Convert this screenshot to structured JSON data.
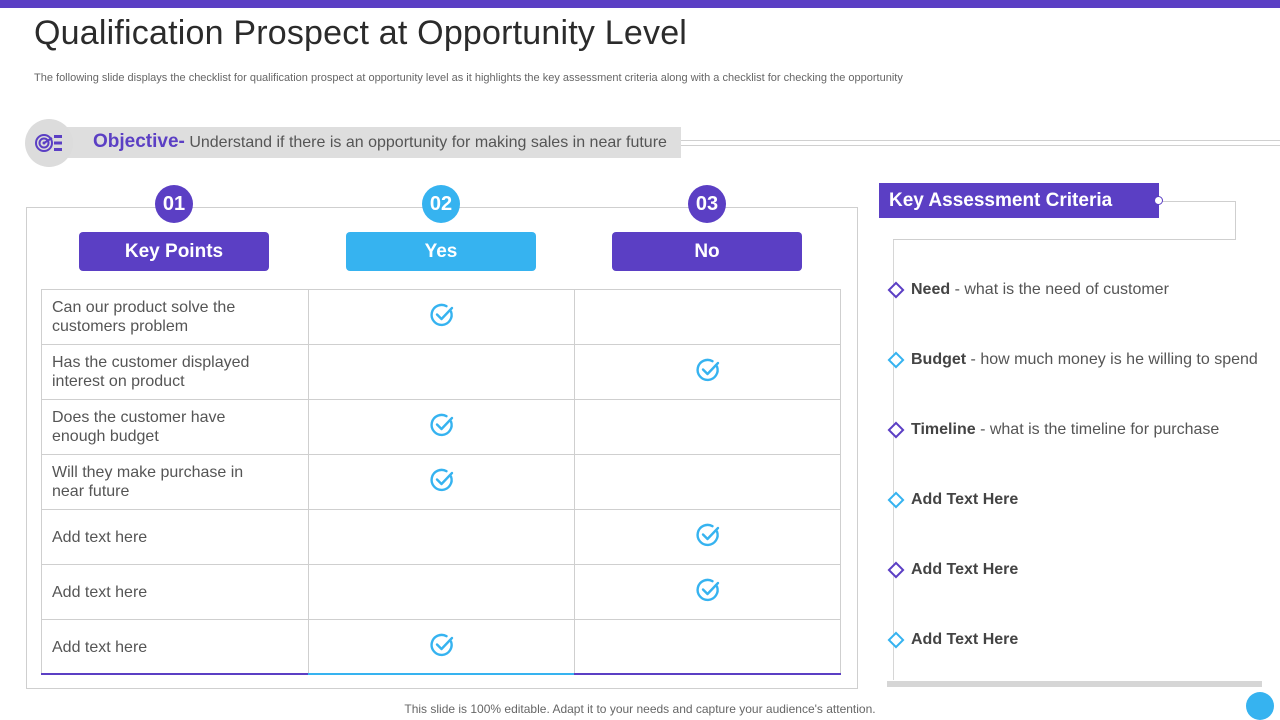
{
  "colors": {
    "purple": "#5b3fc4",
    "blue": "#36b3f0",
    "gray_band": "#dedede"
  },
  "title": "Qualification Prospect at Opportunity Level",
  "subtitle": "The following slide displays the checklist for qualification prospect at opportunity level as it highlights the key assessment criteria along with a checklist for checking the opportunity",
  "objective": {
    "icon": "target-icon",
    "label": "Objective-",
    "text": "Understand if there is an opportunity  for making sales in near future"
  },
  "table": {
    "columns": [
      {
        "number": "01",
        "label": "Key Points",
        "color": "#5b3fc4"
      },
      {
        "number": "02",
        "label": "Yes",
        "color": "#36b3f0"
      },
      {
        "number": "03",
        "label": "No",
        "color": "#5b3fc4"
      }
    ],
    "check_icon": "check-circle-icon",
    "rows": [
      {
        "text": "Can our product solve the customers problem",
        "answer": "yes"
      },
      {
        "text": "Has the customer displayed interest on product",
        "answer": "no"
      },
      {
        "text": "Does the customer have enough budget",
        "answer": "yes"
      },
      {
        "text": "Will they make purchase in near future",
        "answer": "yes"
      },
      {
        "text": "Add text here",
        "answer": "no"
      },
      {
        "text": "Add text here",
        "answer": "no"
      },
      {
        "text": "Add text here",
        "answer": "yes"
      }
    ]
  },
  "criteria": {
    "title": "Key Assessment Criteria",
    "items": [
      {
        "bold": "Need",
        "rest": " - what is the need of customer",
        "accent": "purple"
      },
      {
        "bold": "Budget",
        "rest": " - how much money is he willing to spend",
        "accent": "blue"
      },
      {
        "bold": "Timeline",
        "rest": " - what is the timeline for purchase",
        "accent": "purple"
      },
      {
        "bold": "Add Text Here",
        "rest": "",
        "accent": "blue"
      },
      {
        "bold": "Add Text Here",
        "rest": "",
        "accent": "purple"
      },
      {
        "bold": "Add Text Here",
        "rest": "",
        "accent": "blue"
      }
    ]
  },
  "footer": "This slide is 100% editable. Adapt it to your needs and capture your audience's attention."
}
